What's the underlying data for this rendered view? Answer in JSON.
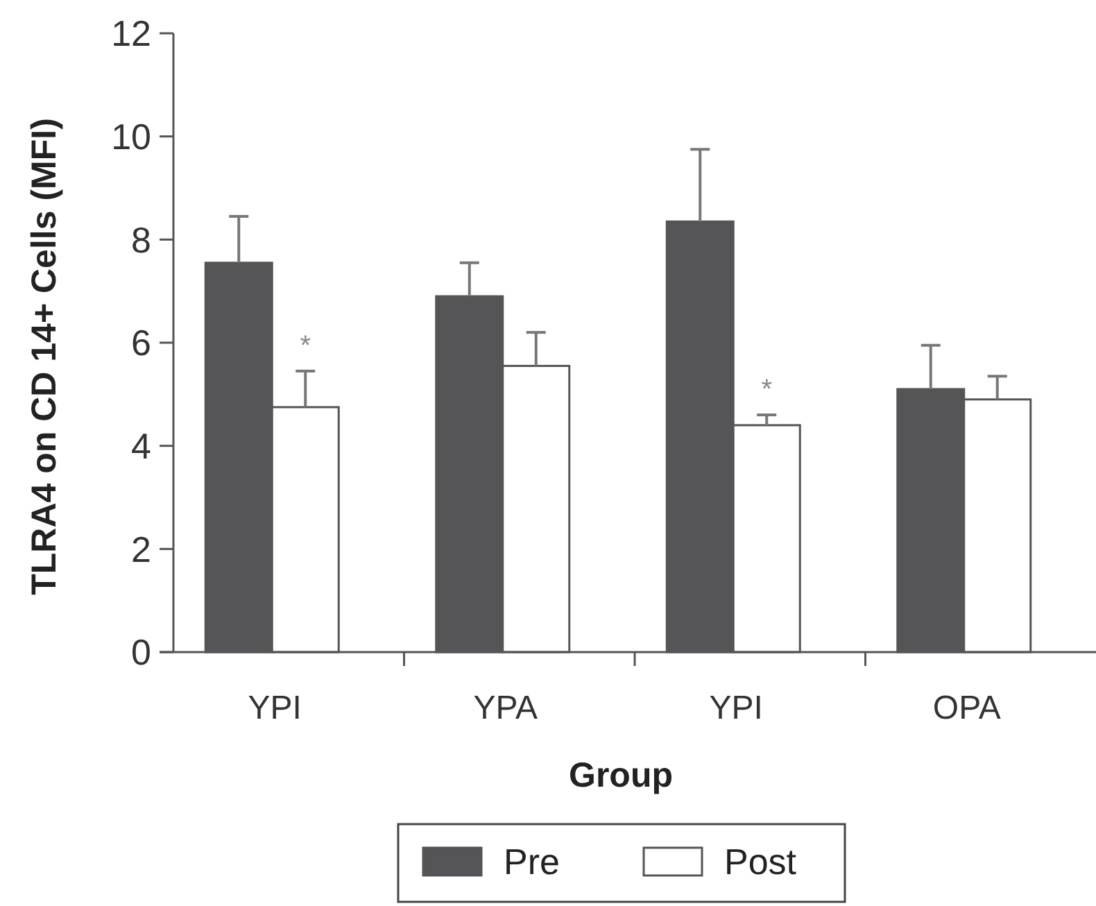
{
  "chart_data": {
    "type": "bar",
    "xlabel": "Group",
    "ylabel": "TLRA4 on CD 14+ Cells (MFI)",
    "categories": [
      "YPI",
      "YPA",
      "YPI",
      "OPA"
    ],
    "series": [
      {
        "name": "Pre",
        "color": "#555557",
        "values": [
          7.55,
          6.9,
          8.35,
          5.1
        ],
        "errors": [
          0.9,
          0.65,
          1.4,
          0.85
        ]
      },
      {
        "name": "Post",
        "color": "#ffffff",
        "values": [
          4.75,
          5.55,
          4.4,
          4.9
        ],
        "errors": [
          0.7,
          0.65,
          0.2,
          0.45
        ]
      }
    ],
    "ylim": [
      0,
      12
    ],
    "yticks": [
      0,
      2,
      4,
      6,
      8,
      10,
      12
    ],
    "grid": false,
    "legend": "bottom",
    "annotations": [
      "*",
      "*"
    ]
  }
}
